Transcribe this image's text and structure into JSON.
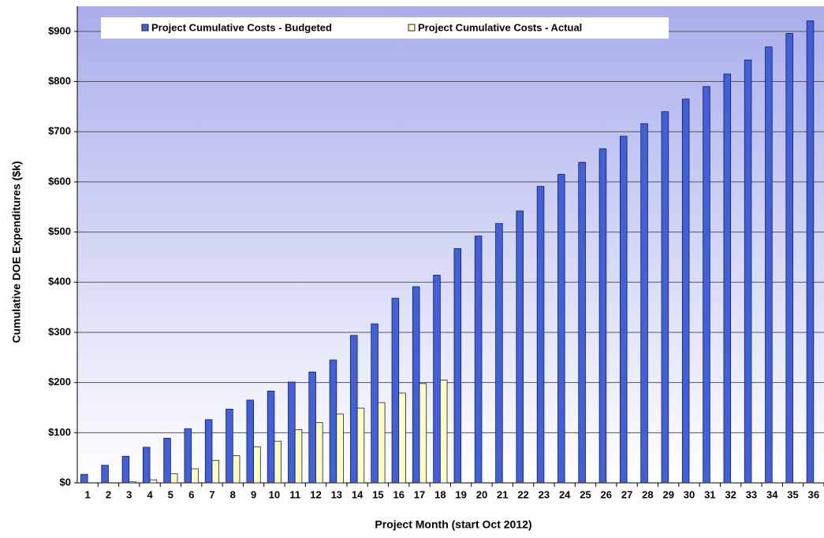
{
  "chart_data": {
    "type": "bar",
    "x_label": "Project Month (start Oct 2012)",
    "y_label": "Cumulative DOE Expenditures ($k)",
    "categories": [
      "1",
      "2",
      "3",
      "4",
      "5",
      "6",
      "7",
      "8",
      "9",
      "10",
      "11",
      "12",
      "13",
      "14",
      "15",
      "16",
      "17",
      "18",
      "19",
      "20",
      "21",
      "22",
      "23",
      "24",
      "25",
      "26",
      "27",
      "28",
      "29",
      "30",
      "31",
      "32",
      "33",
      "34",
      "35",
      "36"
    ],
    "series": [
      {
        "name": "Project Cumulative Costs - Budgeted",
        "color": "#4060dc",
        "values": [
          17,
          35,
          53,
          71,
          89,
          108,
          126,
          147,
          165,
          183,
          201,
          221,
          245,
          294,
          317,
          368,
          391,
          414,
          467,
          492,
          517,
          542,
          591,
          615,
          639,
          666,
          691,
          716,
          740,
          765,
          790,
          815,
          843,
          869,
          896,
          921
        ]
      },
      {
        "name": "Project Cumulative Costs - Actual",
        "color": "#ffffc0",
        "values": [
          0,
          0,
          2,
          6,
          18,
          28,
          45,
          54,
          72,
          83,
          106,
          120,
          137,
          149,
          160,
          179,
          198,
          205,
          null,
          null,
          null,
          null,
          null,
          null,
          null,
          null,
          null,
          null,
          null,
          null,
          null,
          null,
          null,
          null,
          null,
          null
        ]
      }
    ],
    "ylim": [
      0,
      950
    ],
    "yticks": [
      {
        "value": 0,
        "label": "$0"
      },
      {
        "value": 100,
        "label": "$100"
      },
      {
        "value": 200,
        "label": "$200"
      },
      {
        "value": 300,
        "label": "$300"
      },
      {
        "value": 400,
        "label": "$400"
      },
      {
        "value": 500,
        "label": "$500"
      },
      {
        "value": 600,
        "label": "$600"
      },
      {
        "value": 700,
        "label": "$700"
      },
      {
        "value": 800,
        "label": "$800"
      },
      {
        "value": 900,
        "label": "$900"
      }
    ],
    "grid": true,
    "legend": "top"
  }
}
